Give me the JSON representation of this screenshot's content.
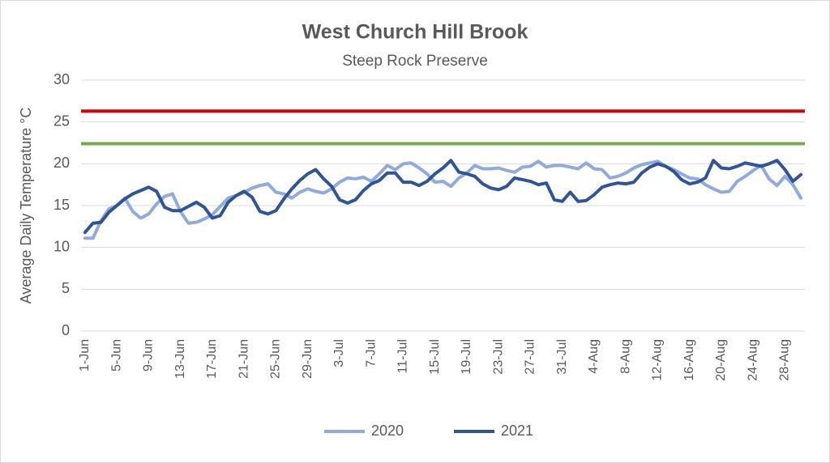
{
  "chart_data": {
    "type": "line",
    "title": "West Church Hill Brook",
    "subtitle": "Steep Rock Preserve",
    "y_label": "Average Daily Temperature °C",
    "categories": [
      "1-Jun",
      null,
      null,
      null,
      "5-Jun",
      null,
      null,
      null,
      "9-Jun",
      null,
      null,
      null,
      "13-Jun",
      null,
      null,
      null,
      "17-Jun",
      null,
      null,
      null,
      "21-Jun",
      null,
      null,
      null,
      "25-Jun",
      null,
      null,
      null,
      "29-Jun",
      null,
      null,
      null,
      "3-Jul",
      null,
      null,
      null,
      "7-Jul",
      null,
      null,
      null,
      "11-Jul",
      null,
      null,
      null,
      "15-Jul",
      null,
      null,
      null,
      "19-Jul",
      null,
      null,
      null,
      "23-Jul",
      null,
      null,
      null,
      "27-Jul",
      null,
      null,
      null,
      "31-Jul",
      null,
      null,
      null,
      "4-Aug",
      null,
      null,
      null,
      "8-Aug",
      null,
      null,
      null,
      "12-Aug",
      null,
      null,
      null,
      "16-Aug",
      null,
      null,
      null,
      "20-Aug",
      null,
      null,
      null,
      "24-Aug",
      null,
      null,
      null,
      "28-Aug",
      null,
      null
    ],
    "series": [
      {
        "name": "2020",
        "color": "#8faadc",
        "values": [
          11.1,
          11.1,
          13.2,
          14.6,
          15.0,
          15.9,
          14.3,
          13.5,
          14.0,
          15.2,
          16.1,
          16.4,
          14.3,
          12.9,
          13.0,
          13.4,
          13.9,
          14.9,
          15.9,
          16.2,
          16.6,
          17.1,
          17.4,
          17.6,
          16.6,
          16.4,
          15.9,
          16.6,
          17.0,
          16.7,
          16.5,
          17.0,
          17.8,
          18.3,
          18.2,
          18.4,
          17.9,
          18.8,
          19.8,
          19.3,
          20.0,
          20.1,
          19.5,
          18.8,
          17.8,
          17.9,
          17.3,
          18.3,
          18.9,
          19.8,
          19.4,
          19.4,
          19.5,
          19.2,
          19.0,
          19.6,
          19.7,
          20.3,
          19.6,
          19.8,
          19.8,
          19.6,
          19.4,
          20.1,
          19.4,
          19.3,
          18.3,
          18.5,
          18.9,
          19.5,
          19.9,
          20.1,
          20.3,
          19.7,
          19.3,
          18.8,
          18.3,
          18.2,
          17.5,
          17.0,
          16.6,
          16.7,
          17.9,
          18.5,
          19.2,
          19.8,
          18.2,
          17.4,
          18.5,
          17.5,
          15.9
        ]
      },
      {
        "name": "2021",
        "color": "#2f5597",
        "values": [
          11.8,
          12.9,
          13.0,
          14.2,
          15.0,
          15.8,
          16.4,
          16.8,
          17.2,
          16.7,
          14.8,
          14.4,
          14.4,
          14.9,
          15.4,
          14.8,
          13.5,
          13.8,
          15.4,
          16.2,
          16.7,
          16.0,
          14.3,
          14.0,
          14.4,
          15.8,
          17.0,
          18.0,
          18.8,
          19.3,
          18.2,
          17.3,
          15.7,
          15.3,
          15.7,
          16.8,
          17.6,
          18.0,
          18.9,
          18.9,
          17.8,
          17.8,
          17.4,
          17.9,
          18.8,
          19.5,
          20.4,
          19.0,
          18.8,
          18.5,
          17.6,
          17.1,
          16.9,
          17.3,
          18.3,
          18.1,
          17.9,
          17.5,
          17.7,
          15.7,
          15.5,
          16.6,
          15.5,
          15.6,
          16.3,
          17.2,
          17.5,
          17.7,
          17.6,
          17.8,
          18.9,
          19.6,
          20.0,
          19.7,
          19.1,
          18.1,
          17.6,
          17.8,
          18.3,
          20.4,
          19.5,
          19.4,
          19.7,
          20.1,
          19.9,
          19.7,
          20.0,
          20.4,
          19.3,
          17.9,
          18.7
        ]
      }
    ],
    "reference_lines": [
      {
        "value": 26.3,
        "color": "#e00000"
      },
      {
        "value": 22.4,
        "color": "#70ad47"
      }
    ],
    "ylim": [
      0,
      30
    ],
    "yticks": [
      0,
      5,
      10,
      15,
      20,
      25,
      30
    ],
    "grid": true,
    "legend": "bottom"
  }
}
